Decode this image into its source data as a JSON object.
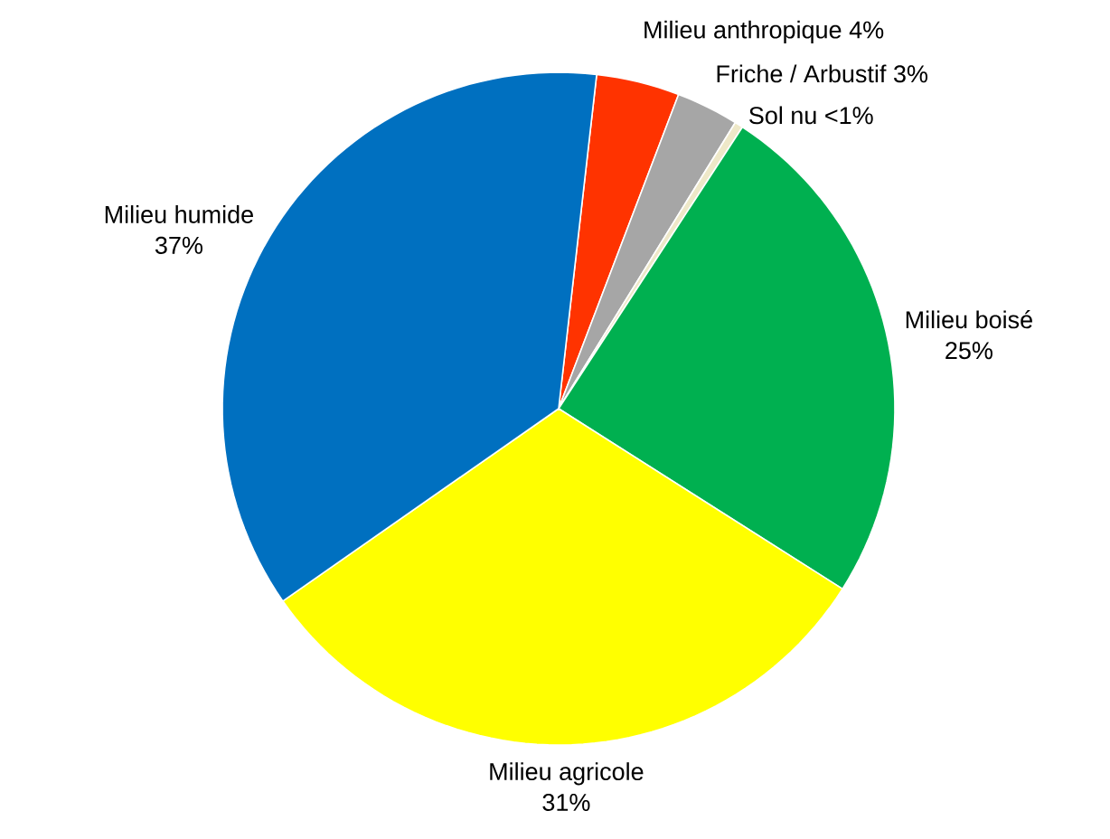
{
  "chart_data": {
    "type": "pie",
    "categories": [
      "Milieu anthropique",
      "Friche / Arbustif",
      "Sol nu",
      "Milieu boisé",
      "Milieu agricole",
      "Milieu humide"
    ],
    "values": [
      4,
      3,
      0.4,
      24.8,
      31.3,
      36.5
    ],
    "value_labels": [
      "4%",
      "3%",
      "<1%",
      "25%",
      "31%",
      "37%"
    ],
    "colors": [
      "#ff3300",
      "#a6a6a6",
      "#eee8c8",
      "#00b050",
      "#ffff00",
      "#0070c0"
    ]
  }
}
